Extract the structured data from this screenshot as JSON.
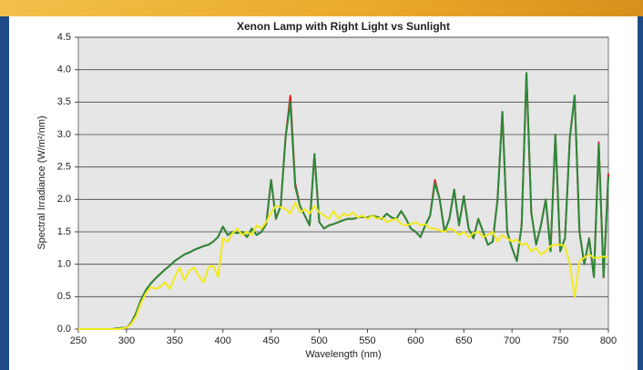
{
  "chart_data": {
    "type": "line",
    "title": "Xenon Lamp with Right Light vs Sunlight",
    "xlabel": "Wavelength (nm)",
    "ylabel": "Spectral Irradiance (W/m²/nm)",
    "x": [
      250,
      255,
      260,
      265,
      270,
      275,
      280,
      285,
      290,
      295,
      300,
      305,
      310,
      315,
      320,
      325,
      330,
      335,
      340,
      345,
      350,
      355,
      360,
      365,
      370,
      375,
      380,
      385,
      390,
      395,
      400,
      405,
      410,
      415,
      420,
      425,
      430,
      435,
      440,
      445,
      450,
      455,
      460,
      465,
      470,
      475,
      480,
      485,
      490,
      495,
      500,
      505,
      510,
      515,
      520,
      525,
      530,
      535,
      540,
      545,
      550,
      555,
      560,
      565,
      570,
      575,
      580,
      585,
      590,
      595,
      600,
      605,
      610,
      615,
      620,
      625,
      630,
      635,
      640,
      645,
      650,
      655,
      660,
      665,
      670,
      675,
      680,
      685,
      690,
      695,
      700,
      705,
      710,
      715,
      720,
      725,
      730,
      735,
      740,
      745,
      750,
      755,
      760,
      765,
      770,
      775,
      780,
      785,
      790,
      795,
      800
    ],
    "series": [
      {
        "color": "#e0202a",
        "values": [
          0,
          0,
          0,
          0,
          0,
          0,
          0,
          0,
          0.01,
          0.02,
          0.02,
          0.1,
          0.25,
          0.45,
          0.6,
          0.7,
          0.78,
          0.85,
          0.92,
          0.98,
          1.05,
          1.1,
          1.15,
          1.18,
          1.22,
          1.25,
          1.28,
          1.3,
          1.35,
          1.42,
          1.58,
          1.45,
          1.5,
          1.48,
          1.5,
          1.42,
          1.55,
          1.45,
          1.5,
          1.62,
          2.3,
          1.7,
          1.9,
          2.95,
          3.6,
          2.25,
          1.9,
          1.75,
          1.6,
          2.7,
          1.65,
          1.55,
          1.6,
          1.62,
          1.65,
          1.68,
          1.7,
          1.7,
          1.72,
          1.73,
          1.72,
          1.75,
          1.73,
          1.7,
          1.78,
          1.72,
          1.7,
          1.82,
          1.7,
          1.55,
          1.5,
          1.42,
          1.6,
          1.75,
          2.3,
          2.0,
          1.5,
          1.7,
          2.15,
          1.6,
          2.05,
          1.55,
          1.4,
          1.7,
          1.5,
          1.3,
          1.35,
          2.0,
          3.35,
          1.5,
          1.25,
          1.05,
          1.6,
          3.95,
          1.8,
          1.3,
          1.6,
          2.0,
          1.2,
          3.0,
          1.2,
          1.4,
          2.95,
          3.6,
          1.5,
          1.0,
          1.4,
          0.8,
          2.88,
          0.8,
          2.4
        ]
      },
      {
        "color": "#2a8a3a",
        "values": [
          0,
          0,
          0,
          0,
          0,
          0,
          0,
          0,
          0.01,
          0.02,
          0.02,
          0.1,
          0.25,
          0.45,
          0.6,
          0.7,
          0.78,
          0.85,
          0.92,
          0.98,
          1.05,
          1.1,
          1.15,
          1.18,
          1.22,
          1.25,
          1.28,
          1.3,
          1.35,
          1.42,
          1.58,
          1.45,
          1.5,
          1.48,
          1.5,
          1.42,
          1.55,
          1.45,
          1.5,
          1.62,
          2.3,
          1.7,
          1.9,
          2.95,
          3.5,
          2.2,
          1.9,
          1.75,
          1.6,
          2.7,
          1.65,
          1.55,
          1.6,
          1.62,
          1.65,
          1.68,
          1.7,
          1.7,
          1.72,
          1.73,
          1.72,
          1.75,
          1.73,
          1.7,
          1.78,
          1.72,
          1.7,
          1.82,
          1.7,
          1.55,
          1.5,
          1.42,
          1.6,
          1.75,
          2.25,
          2.0,
          1.5,
          1.7,
          2.15,
          1.6,
          2.05,
          1.55,
          1.4,
          1.7,
          1.5,
          1.3,
          1.35,
          2.0,
          3.35,
          1.5,
          1.25,
          1.05,
          1.6,
          3.95,
          1.8,
          1.3,
          1.6,
          2.0,
          1.2,
          3.0,
          1.2,
          1.4,
          2.95,
          3.6,
          1.5,
          1.0,
          1.4,
          0.8,
          2.85,
          0.8,
          2.35
        ]
      },
      {
        "color": "#f2ea1c",
        "values": [
          0,
          0,
          0,
          0,
          0,
          0,
          0,
          0,
          0,
          0.01,
          0.02,
          0.08,
          0.2,
          0.4,
          0.55,
          0.65,
          0.62,
          0.65,
          0.72,
          0.62,
          0.8,
          0.95,
          0.75,
          0.9,
          0.95,
          0.82,
          0.72,
          0.95,
          0.98,
          0.8,
          1.4,
          1.35,
          1.48,
          1.55,
          1.45,
          1.5,
          1.45,
          1.6,
          1.55,
          1.65,
          1.8,
          1.9,
          1.88,
          1.85,
          1.78,
          1.95,
          1.8,
          1.85,
          1.78,
          1.9,
          1.8,
          1.75,
          1.7,
          1.82,
          1.7,
          1.78,
          1.75,
          1.8,
          1.72,
          1.75,
          1.7,
          1.75,
          1.7,
          1.72,
          1.65,
          1.68,
          1.7,
          1.62,
          1.6,
          1.62,
          1.65,
          1.6,
          1.62,
          1.55,
          1.55,
          1.52,
          1.5,
          1.55,
          1.52,
          1.45,
          1.5,
          1.42,
          1.48,
          1.5,
          1.42,
          1.45,
          1.5,
          1.35,
          1.45,
          1.4,
          1.35,
          1.38,
          1.3,
          1.32,
          1.2,
          1.25,
          1.15,
          1.2,
          1.28,
          1.3,
          1.3,
          1.28,
          1.0,
          0.5,
          1.05,
          1.1,
          1.15,
          1.1,
          1.1,
          1.12,
          1.1
        ]
      }
    ],
    "xlim": [
      250,
      800
    ],
    "xticks": [
      250,
      300,
      350,
      400,
      450,
      500,
      550,
      600,
      650,
      700,
      750,
      800
    ],
    "ylim": [
      0,
      4.5
    ],
    "yticks": [
      {
        "value": 0,
        "label": "0.0"
      },
      0.5,
      {
        "value": 1,
        "label": "1.0"
      },
      1.5,
      {
        "value": 2,
        "label": "2.0"
      },
      2.5,
      {
        "value": 3,
        "label": "3.0"
      },
      3.5,
      {
        "value": 4,
        "label": "4.0"
      },
      4.5
    ],
    "grid": true,
    "background": "#e6e6e6"
  }
}
